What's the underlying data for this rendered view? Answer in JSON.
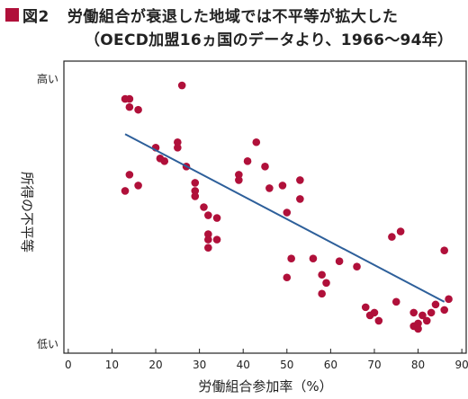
{
  "figure": {
    "label": "図2",
    "title": "労働組合が衰退した地域では不平等が拡大した",
    "subtitle": "（OECD加盟16ヵ国のデータより、1966〜94年）",
    "marker_color": "#b0103a"
  },
  "chart_data": {
    "type": "scatter",
    "title": "労働組合が衰退した地域では不平等が拡大した",
    "subtitle": "（OECD加盟16ヵ国のデータより、1966〜94年）",
    "xlabel": "労働組合参加率（%）",
    "ylabel": "所得の不平等",
    "xlim": [
      -1,
      91
    ],
    "ylim": [
      0,
      100
    ],
    "x_ticks": [
      "0",
      "10",
      "20",
      "30",
      "40",
      "50",
      "60",
      "70",
      "80",
      "90"
    ],
    "y_tick_labels": {
      "high": "高い",
      "low": "低い"
    },
    "y_axis_numeric": false,
    "grid": false,
    "legend": "none",
    "point_color": "#b0103a",
    "trend_color": "#2d5f9a",
    "trendline": {
      "x": [
        13,
        86
      ],
      "y": [
        77,
        15
      ]
    },
    "points": [
      {
        "x": 13,
        "y": 90
      },
      {
        "x": 14,
        "y": 90
      },
      {
        "x": 14,
        "y": 87
      },
      {
        "x": 16,
        "y": 86
      },
      {
        "x": 26,
        "y": 95
      },
      {
        "x": 20,
        "y": 72
      },
      {
        "x": 21,
        "y": 68
      },
      {
        "x": 22,
        "y": 67
      },
      {
        "x": 25,
        "y": 74
      },
      {
        "x": 25,
        "y": 72
      },
      {
        "x": 27,
        "y": 65
      },
      {
        "x": 13,
        "y": 56
      },
      {
        "x": 14,
        "y": 62
      },
      {
        "x": 16,
        "y": 58
      },
      {
        "x": 29,
        "y": 59
      },
      {
        "x": 29,
        "y": 56
      },
      {
        "x": 29,
        "y": 54
      },
      {
        "x": 31,
        "y": 50
      },
      {
        "x": 32,
        "y": 47
      },
      {
        "x": 34,
        "y": 46
      },
      {
        "x": 32,
        "y": 40
      },
      {
        "x": 34,
        "y": 38
      },
      {
        "x": 32,
        "y": 38
      },
      {
        "x": 32,
        "y": 35
      },
      {
        "x": 39,
        "y": 62
      },
      {
        "x": 39,
        "y": 60
      },
      {
        "x": 41,
        "y": 67
      },
      {
        "x": 43,
        "y": 74
      },
      {
        "x": 45,
        "y": 65
      },
      {
        "x": 46,
        "y": 57
      },
      {
        "x": 49,
        "y": 58
      },
      {
        "x": 50,
        "y": 48
      },
      {
        "x": 53,
        "y": 53
      },
      {
        "x": 53,
        "y": 60
      },
      {
        "x": 50,
        "y": 24
      },
      {
        "x": 51,
        "y": 31
      },
      {
        "x": 56,
        "y": 31
      },
      {
        "x": 58,
        "y": 25
      },
      {
        "x": 59,
        "y": 22
      },
      {
        "x": 58,
        "y": 18
      },
      {
        "x": 62,
        "y": 30
      },
      {
        "x": 66,
        "y": 28
      },
      {
        "x": 68,
        "y": 13
      },
      {
        "x": 69,
        "y": 10
      },
      {
        "x": 70,
        "y": 11
      },
      {
        "x": 71,
        "y": 8
      },
      {
        "x": 74,
        "y": 39
      },
      {
        "x": 76,
        "y": 41
      },
      {
        "x": 75,
        "y": 15
      },
      {
        "x": 79,
        "y": 11
      },
      {
        "x": 79,
        "y": 6
      },
      {
        "x": 80,
        "y": 5
      },
      {
        "x": 80,
        "y": 7
      },
      {
        "x": 81,
        "y": 10
      },
      {
        "x": 82,
        "y": 8
      },
      {
        "x": 83,
        "y": 11
      },
      {
        "x": 84,
        "y": 14
      },
      {
        "x": 86,
        "y": 34
      },
      {
        "x": 86,
        "y": 12
      },
      {
        "x": 87,
        "y": 16
      }
    ]
  }
}
